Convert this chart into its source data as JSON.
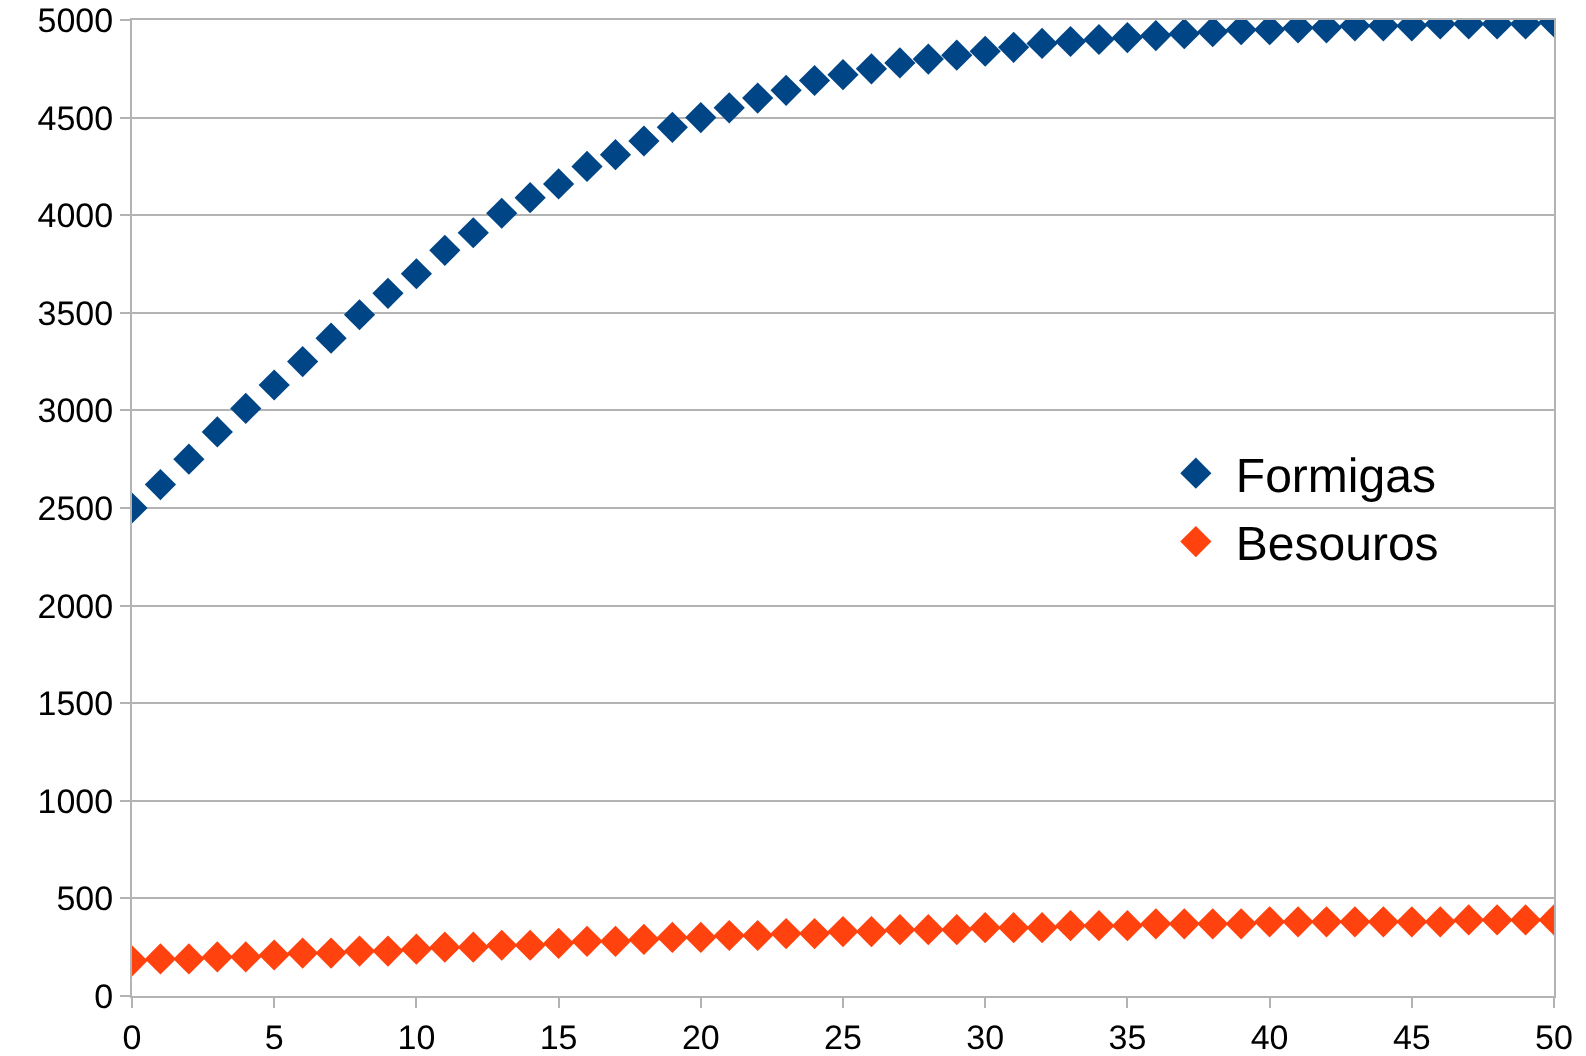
{
  "chart_data": {
    "type": "scatter",
    "marker": "diamond",
    "grid": "y",
    "legend": "right",
    "x": [
      0,
      1,
      2,
      3,
      4,
      5,
      6,
      7,
      8,
      9,
      10,
      11,
      12,
      13,
      14,
      15,
      16,
      17,
      18,
      19,
      20,
      21,
      22,
      23,
      24,
      25,
      26,
      27,
      28,
      29,
      30,
      31,
      32,
      33,
      34,
      35,
      36,
      37,
      38,
      39,
      40,
      41,
      42,
      43,
      44,
      45,
      46,
      47,
      48,
      49,
      50
    ],
    "series": [
      {
        "name": "Formigas",
        "color": "#004586",
        "values": [
          2500,
          2620,
          2750,
          2890,
          3010,
          3130,
          3250,
          3370,
          3490,
          3600,
          3700,
          3820,
          3910,
          4010,
          4090,
          4160,
          4250,
          4310,
          4380,
          4450,
          4500,
          4550,
          4600,
          4640,
          4690,
          4720,
          4750,
          4780,
          4800,
          4820,
          4840,
          4860,
          4880,
          4890,
          4900,
          4910,
          4920,
          4930,
          4940,
          4950,
          4950,
          4960,
          4960,
          4970,
          4970,
          4970,
          4980,
          4980,
          4980,
          4980,
          4990
        ]
      },
      {
        "name": "Besouros",
        "color": "#ff420e",
        "values": [
          180,
          190,
          190,
          200,
          200,
          210,
          220,
          220,
          230,
          230,
          240,
          250,
          250,
          260,
          260,
          270,
          280,
          280,
          290,
          300,
          300,
          310,
          310,
          320,
          320,
          330,
          330,
          340,
          340,
          340,
          350,
          350,
          350,
          360,
          360,
          360,
          370,
          370,
          370,
          370,
          380,
          380,
          380,
          380,
          380,
          380,
          380,
          390,
          390,
          390,
          390
        ]
      }
    ],
    "xlim": [
      0,
      50
    ],
    "xticks": [
      0,
      5,
      10,
      15,
      20,
      25,
      30,
      35,
      40,
      45,
      50
    ],
    "ylim": [
      0,
      5000
    ],
    "yticks": [
      0,
      500,
      1000,
      1500,
      2000,
      2500,
      3000,
      3500,
      4000,
      4500,
      5000
    ]
  }
}
